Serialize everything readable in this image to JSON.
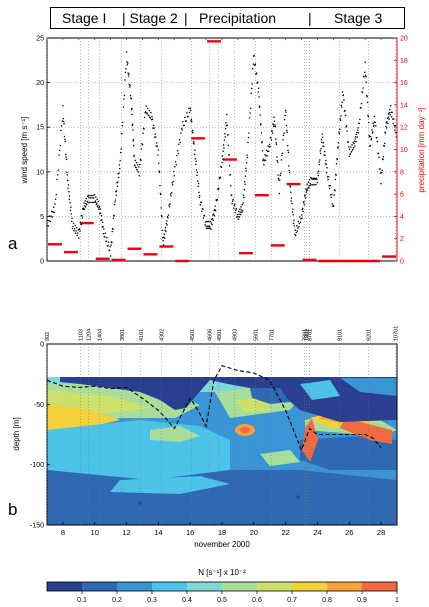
{
  "header": {
    "stages": [
      "Stage I",
      "| Stage 2",
      "|",
      "Precipitation",
      "|",
      "Stage 3"
    ]
  },
  "chart_data": [
    {
      "type": "scatter",
      "panel_label": "a",
      "xlim": [
        7,
        29
      ],
      "ylabel": "wind speed [m s⁻¹]",
      "ylim": [
        0,
        25
      ],
      "yticks": [
        0,
        5,
        10,
        15,
        20,
        25
      ],
      "y2label": "precipitation [mm day⁻¹]",
      "y2lim": [
        0,
        20
      ],
      "y2ticks": [
        0,
        2,
        4,
        6,
        8,
        10,
        12,
        14,
        16,
        18,
        20
      ],
      "grid": true,
      "colors": {
        "wind": "#000000",
        "precip": "#e8000b"
      },
      "wind_x": [
        7,
        7.5,
        8,
        8.3,
        8.6,
        9,
        9.3,
        9.6,
        10,
        10.3,
        10.6,
        11,
        11.3,
        11.6,
        12,
        12.3,
        12.5,
        12.8,
        13.2,
        13.6,
        14,
        14.3,
        14.6,
        15,
        15.5,
        16,
        16.3,
        16.6,
        17,
        17.3,
        17.6,
        18,
        18.3,
        18.6,
        19,
        19.3,
        19.6,
        20,
        20.3,
        20.6,
        21,
        21.3,
        21.6,
        22,
        22.3,
        22.6,
        23,
        23.3,
        23.6,
        24,
        24.3,
        24.6,
        25,
        25.3,
        25.6,
        26,
        26.3,
        26.6,
        27,
        27.3,
        27.6,
        28,
        28.3,
        28.6,
        29
      ],
      "wind_y": [
        4,
        6,
        17,
        9,
        4,
        3,
        6,
        7,
        7,
        6,
        3,
        1,
        7,
        11,
        23,
        18,
        11,
        10,
        17,
        16,
        12,
        2,
        5,
        10,
        15,
        17,
        12,
        7,
        4,
        4,
        6,
        11,
        16,
        7,
        5,
        6,
        12,
        23,
        19,
        11,
        13,
        16,
        8,
        17,
        8,
        3,
        5,
        8,
        9,
        9,
        14,
        10,
        6,
        13,
        19,
        12,
        13,
        15,
        22,
        13,
        16,
        9,
        15,
        17,
        14
      ],
      "precip_bars": [
        {
          "x0": 7,
          "x1": 8,
          "y": 1.5
        },
        {
          "x0": 8,
          "x1": 9,
          "y": 0.8
        },
        {
          "x0": 9,
          "x1": 10,
          "y": 3.4
        },
        {
          "x0": 10,
          "x1": 11,
          "y": 0.2
        },
        {
          "x0": 11,
          "x1": 12,
          "y": 0.1
        },
        {
          "x0": 12,
          "x1": 13,
          "y": 1.1
        },
        {
          "x0": 13,
          "x1": 14,
          "y": 0.6
        },
        {
          "x0": 14,
          "x1": 15,
          "y": 1.3
        },
        {
          "x0": 15,
          "x1": 16,
          "y": 0.0
        },
        {
          "x0": 16,
          "x1": 17,
          "y": 11.0
        },
        {
          "x0": 17,
          "x1": 18,
          "y": 19.7
        },
        {
          "x0": 18,
          "x1": 19,
          "y": 9.1
        },
        {
          "x0": 19,
          "x1": 20,
          "y": 0.7
        },
        {
          "x0": 20,
          "x1": 21,
          "y": 5.9
        },
        {
          "x0": 21,
          "x1": 22,
          "y": 1.4
        },
        {
          "x0": 22,
          "x1": 23,
          "y": 6.9
        },
        {
          "x0": 23,
          "x1": 24,
          "y": 0.1
        },
        {
          "x0": 24,
          "x1": 28,
          "y": 0.0
        },
        {
          "x0": 28,
          "x1": 29,
          "y": 0.4
        }
      ]
    },
    {
      "type": "heatmap",
      "panel_label": "b",
      "xlabel": "november 2000",
      "xlim": [
        7,
        29
      ],
      "xticks": [
        8,
        10,
        12,
        14,
        16,
        18,
        20,
        22,
        24,
        26,
        28
      ],
      "ylabel": "depth [m]",
      "ylim": [
        -150,
        0
      ],
      "yticks": [
        0,
        -50,
        -100,
        -150
      ],
      "station_labels": [
        {
          "x": 7.0,
          "label": "902"
        },
        {
          "x": 9.1,
          "label": "1103"
        },
        {
          "x": 9.6,
          "label": "1204"
        },
        {
          "x": 10.3,
          "label": "1404"
        },
        {
          "x": 11.7,
          "label": "3801"
        },
        {
          "x": 12.9,
          "label": "4101"
        },
        {
          "x": 14.2,
          "label": "4302"
        },
        {
          "x": 16.1,
          "label": "4501"
        },
        {
          "x": 17.2,
          "label": "4606"
        },
        {
          "x": 17.8,
          "label": "4801"
        },
        {
          "x": 18.8,
          "label": "4903"
        },
        {
          "x": 20.1,
          "label": "5601"
        },
        {
          "x": 21.1,
          "label": "7701"
        },
        {
          "x": 23.2,
          "label": "7801"
        },
        {
          "x": 23.3,
          "label": "7802"
        },
        {
          "x": 23.5,
          "label": "8701"
        },
        {
          "x": 25.4,
          "label": "9101"
        },
        {
          "x": 27.2,
          "label": "9201"
        },
        {
          "x": 28.9,
          "label": "10701"
        }
      ],
      "mixed_layer_depth": {
        "x": [
          7,
          8,
          9,
          10,
          11,
          12,
          13,
          14,
          14.5,
          15,
          16,
          16.5,
          17,
          17.5,
          18,
          19,
          20,
          21,
          22,
          23,
          23.5,
          24,
          25,
          26,
          27,
          27.5,
          28
        ],
        "y": [
          -30,
          -35,
          -36,
          -35,
          -37,
          -36,
          -45,
          -55,
          -62,
          -70,
          -45,
          -55,
          -68,
          -30,
          -18,
          -22,
          -24,
          -30,
          -55,
          -88,
          -70,
          -75,
          -75,
          -75,
          -75,
          -78,
          -86
        ]
      },
      "colorbar": {
        "label": "N [s⁻¹] x 10⁻²",
        "range": [
          0,
          1
        ],
        "ticks": [
          0.1,
          0.2,
          0.3,
          0.4,
          0.5,
          0.6,
          0.7,
          0.8,
          0.9,
          1
        ],
        "colors": [
          "#2a3f8f",
          "#2f68b3",
          "#3a95d6",
          "#4dc3ea",
          "#7fd8d6",
          "#a8de9a",
          "#cde06a",
          "#f3d13a",
          "#f6a13a",
          "#f26a44"
        ]
      }
    }
  ]
}
